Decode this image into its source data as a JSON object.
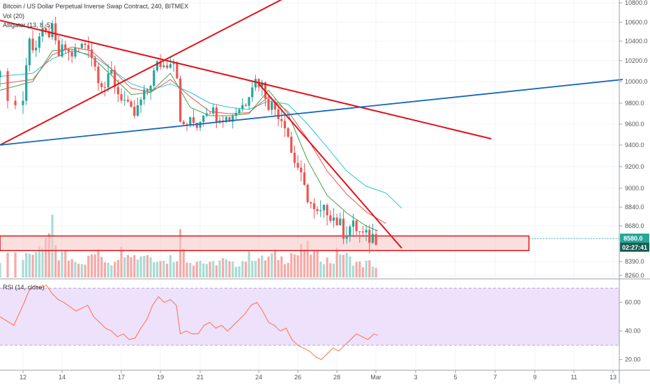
{
  "header": {
    "title": "Bitcoin / US Dollar Perpetual Inverse Swap Contract, 240, BITMEX",
    "volume_label": "Vol (20)",
    "alligator_label": "Alligator (13, 8, 5)"
  },
  "rsi_panel": {
    "label": "RSI (14, close)",
    "ticks": [
      {
        "value": 60,
        "label": "60.00"
      },
      {
        "value": 40,
        "label": "40.00"
      },
      {
        "value": 20,
        "label": "20.00"
      }
    ],
    "band": [
      30,
      70
    ],
    "ylim": [
      13,
      75
    ]
  },
  "price_tag": {
    "value": 8580,
    "label": "8580.0",
    "countdown": "02:27:41"
  },
  "colors": {
    "up": "#26a69a",
    "down": "#ef5350",
    "trendline": "#e0121a",
    "support_line": "#1565c0",
    "alligator_jaw": "#26c6da",
    "alligator_teeth": "#ef5350",
    "alligator_lips": "#43a047",
    "rsi_line": "#ff7043",
    "rsi_band": "#ede1fc",
    "zone_fill": "#f7c9c9",
    "tag_bg": "#26a69a",
    "tag_dark": "#1c5d55"
  },
  "chart_data": {
    "type": "candlestick",
    "title": "Bitcoin / US Dollar Perpetual Inverse Swap Contract, 240, BITMEX",
    "price_axis": {
      "ylim": [
        8240,
        10900
      ],
      "ticks": [
        {
          "value": 10800,
          "label": "10800.0"
        },
        {
          "value": 10600,
          "label": "10600.0"
        },
        {
          "value": 10400,
          "label": "10400.0"
        },
        {
          "value": 10200,
          "label": "10200.0"
        },
        {
          "value": 10000,
          "label": "10000.0"
        },
        {
          "value": 9800,
          "label": "9800.0"
        },
        {
          "value": 9600,
          "label": "9600.0"
        },
        {
          "value": 9400,
          "label": "9400.0"
        },
        {
          "value": 9200,
          "label": "9200.0"
        },
        {
          "value": 9000,
          "label": "9000.0"
        },
        {
          "value": 8840,
          "label": "8840.0"
        },
        {
          "value": 8680,
          "label": "8680.0"
        },
        {
          "value": 8390,
          "label": "8390.0"
        },
        {
          "value": 8260,
          "label": "8260.0"
        }
      ]
    },
    "time_axis": {
      "xlim": [
        11.5,
        13.5
      ],
      "unit": "day",
      "ticks": [
        {
          "day": 12,
          "label": "12"
        },
        {
          "day": 14,
          "label": "14"
        },
        {
          "day": 17,
          "label": "17"
        },
        {
          "day": 19,
          "label": "19"
        },
        {
          "day": 21,
          "label": "21"
        },
        {
          "day": 24,
          "label": "24"
        },
        {
          "day": 26,
          "label": "26"
        },
        {
          "day": 28,
          "label": "28"
        },
        {
          "day": 30,
          "label": "Mar"
        },
        {
          "day": 32,
          "label": "3"
        },
        {
          "day": 34,
          "label": "5"
        },
        {
          "day": 36,
          "label": "7"
        },
        {
          "day": 38,
          "label": "9"
        },
        {
          "day": 40,
          "label": "11"
        },
        {
          "day": 42,
          "label": "13"
        }
      ]
    },
    "close_path": [
      [
        11.5,
        10040
      ],
      [
        11.8,
        9760
      ],
      [
        12.0,
        9840
      ],
      [
        12.3,
        10420
      ],
      [
        12.6,
        10320
      ],
      [
        12.9,
        10480
      ],
      [
        13.2,
        10460
      ],
      [
        13.5,
        10520
      ],
      [
        13.8,
        10240
      ],
      [
        14.1,
        10340
      ],
      [
        14.4,
        10250
      ],
      [
        14.7,
        10300
      ],
      [
        15.0,
        10350
      ],
      [
        15.3,
        10390
      ],
      [
        15.6,
        10180
      ],
      [
        15.9,
        10020
      ],
      [
        16.2,
        9950
      ],
      [
        16.5,
        10080
      ],
      [
        16.8,
        9900
      ],
      [
        17.1,
        9850
      ],
      [
        17.4,
        9720
      ],
      [
        17.7,
        9680
      ],
      [
        18.0,
        9820
      ],
      [
        18.3,
        9900
      ],
      [
        18.6,
        10050
      ],
      [
        18.9,
        10180
      ],
      [
        19.2,
        10150
      ],
      [
        19.5,
        10220
      ],
      [
        19.8,
        10190
      ],
      [
        20.0,
        9580
      ],
      [
        20.3,
        9600
      ],
      [
        20.6,
        9620
      ],
      [
        20.9,
        9600
      ],
      [
        21.2,
        9740
      ],
      [
        21.5,
        9760
      ],
      [
        21.8,
        9680
      ],
      [
        22.1,
        9700
      ],
      [
        22.4,
        9640
      ],
      [
        22.7,
        9700
      ],
      [
        23.0,
        9760
      ],
      [
        23.3,
        9800
      ],
      [
        23.6,
        9980
      ],
      [
        23.9,
        10020
      ],
      [
        24.2,
        9960
      ],
      [
        24.5,
        9800
      ],
      [
        24.8,
        9760
      ],
      [
        25.1,
        9680
      ],
      [
        25.4,
        9600
      ],
      [
        25.7,
        9300
      ],
      [
        26.0,
        9200
      ],
      [
        26.3,
        9000
      ],
      [
        26.6,
        8900
      ],
      [
        26.9,
        8760
      ],
      [
        27.2,
        8780
      ],
      [
        27.5,
        8820
      ],
      [
        27.8,
        8760
      ],
      [
        28.1,
        8700
      ],
      [
        28.4,
        8620
      ],
      [
        28.7,
        8680
      ],
      [
        29.0,
        8660
      ],
      [
        29.3,
        8600
      ],
      [
        29.6,
        8580
      ],
      [
        29.9,
        8600
      ],
      [
        30.1,
        8580
      ]
    ],
    "volume_path": [
      [
        11.5,
        0.3
      ],
      [
        11.8,
        0.45
      ],
      [
        12.0,
        0.4
      ],
      [
        12.3,
        0.6
      ],
      [
        12.6,
        0.35
      ],
      [
        12.9,
        0.55
      ],
      [
        13.2,
        0.7
      ],
      [
        13.5,
        1.0
      ],
      [
        13.8,
        0.4
      ],
      [
        14.1,
        0.5
      ],
      [
        14.4,
        0.35
      ],
      [
        14.7,
        0.4
      ],
      [
        15.0,
        0.3
      ],
      [
        15.3,
        0.35
      ],
      [
        15.6,
        0.5
      ],
      [
        15.9,
        0.45
      ],
      [
        16.2,
        0.35
      ],
      [
        16.5,
        0.3
      ],
      [
        16.8,
        0.45
      ],
      [
        17.1,
        0.55
      ],
      [
        17.4,
        0.6
      ],
      [
        17.7,
        0.4
      ],
      [
        18.0,
        0.45
      ],
      [
        18.3,
        0.5
      ],
      [
        18.6,
        0.35
      ],
      [
        18.9,
        0.45
      ],
      [
        19.2,
        0.3
      ],
      [
        19.5,
        0.4
      ],
      [
        19.8,
        0.35
      ],
      [
        20.0,
        0.85
      ],
      [
        20.3,
        0.4
      ],
      [
        20.6,
        0.3
      ],
      [
        20.9,
        0.35
      ],
      [
        21.2,
        0.3
      ],
      [
        21.5,
        0.25
      ],
      [
        21.8,
        0.3
      ],
      [
        22.1,
        0.35
      ],
      [
        22.4,
        0.3
      ],
      [
        22.7,
        0.25
      ],
      [
        23.0,
        0.3
      ],
      [
        23.3,
        0.35
      ],
      [
        23.6,
        0.45
      ],
      [
        23.9,
        0.4
      ],
      [
        24.2,
        0.35
      ],
      [
        24.5,
        0.4
      ],
      [
        24.8,
        0.45
      ],
      [
        25.1,
        0.4
      ],
      [
        25.4,
        0.35
      ],
      [
        25.7,
        0.5
      ],
      [
        26.0,
        0.45
      ],
      [
        26.3,
        0.6
      ],
      [
        26.6,
        0.55
      ],
      [
        26.9,
        0.45
      ],
      [
        27.2,
        0.4
      ],
      [
        27.5,
        0.35
      ],
      [
        27.8,
        0.3
      ],
      [
        28.1,
        0.55
      ],
      [
        28.4,
        0.45
      ],
      [
        28.7,
        0.35
      ],
      [
        29.0,
        0.3
      ],
      [
        29.3,
        0.25
      ],
      [
        29.6,
        0.3
      ],
      [
        29.9,
        0.25
      ],
      [
        30.1,
        0.15
      ]
    ],
    "alligator": {
      "jaw": [
        [
          11.5,
          10050
        ],
        [
          12.5,
          10080
        ],
        [
          13.5,
          10220
        ],
        [
          14.5,
          10300
        ],
        [
          15.5,
          10260
        ],
        [
          16.5,
          10120
        ],
        [
          17.5,
          9980
        ],
        [
          18.5,
          9920
        ],
        [
          19.5,
          9980
        ],
        [
          20.5,
          9900
        ],
        [
          21.5,
          9800
        ],
        [
          22.5,
          9760
        ],
        [
          23.5,
          9740
        ],
        [
          24.5,
          9820
        ],
        [
          25.5,
          9790
        ],
        [
          26.5,
          9600
        ],
        [
          27.5,
          9380
        ],
        [
          28.5,
          9160
        ],
        [
          29.5,
          9020
        ],
        [
          30.5,
          8960
        ],
        [
          31.3,
          8830
        ]
      ],
      "teeth": [
        [
          11.5,
          9980
        ],
        [
          12.5,
          10020
        ],
        [
          13.5,
          10260
        ],
        [
          14.5,
          10340
        ],
        [
          15.5,
          10300
        ],
        [
          16.5,
          10120
        ],
        [
          17.5,
          9940
        ],
        [
          18.5,
          9900
        ],
        [
          19.5,
          10020
        ],
        [
          20.5,
          9860
        ],
        [
          21.5,
          9720
        ],
        [
          22.5,
          9700
        ],
        [
          23.5,
          9710
        ],
        [
          24.5,
          9860
        ],
        [
          25.5,
          9720
        ],
        [
          26.5,
          9460
        ],
        [
          27.5,
          9160
        ],
        [
          28.5,
          8950
        ],
        [
          29.5,
          8800
        ],
        [
          30.5,
          8700
        ]
      ],
      "lips": [
        [
          11.5,
          9920
        ],
        [
          12.5,
          10000
        ],
        [
          13.5,
          10300
        ],
        [
          14.5,
          10320
        ],
        [
          15.5,
          10240
        ],
        [
          16.5,
          10060
        ],
        [
          17.5,
          9880
        ],
        [
          18.5,
          9900
        ],
        [
          19.5,
          10080
        ],
        [
          20.5,
          9760
        ],
        [
          21.5,
          9680
        ],
        [
          22.5,
          9680
        ],
        [
          23.5,
          9700
        ],
        [
          24.5,
          9920
        ],
        [
          25.5,
          9700
        ],
        [
          26.5,
          9260
        ],
        [
          27.5,
          8940
        ],
        [
          28.5,
          8790
        ],
        [
          29.5,
          8680
        ],
        [
          30.1,
          8640
        ]
      ]
    },
    "rsi_path": [
      [
        11.5,
        50
      ],
      [
        11.8,
        44
      ],
      [
        12.0,
        58
      ],
      [
        12.3,
        68
      ],
      [
        12.6,
        72
      ],
      [
        12.9,
        70
      ],
      [
        13.2,
        72
      ],
      [
        13.5,
        66
      ],
      [
        13.8,
        62
      ],
      [
        14.1,
        60
      ],
      [
        14.4,
        57
      ],
      [
        14.7,
        54
      ],
      [
        15.0,
        56
      ],
      [
        15.3,
        58
      ],
      [
        15.6,
        50
      ],
      [
        15.9,
        46
      ],
      [
        16.2,
        42
      ],
      [
        16.5,
        40
      ],
      [
        16.8,
        36
      ],
      [
        17.1,
        38
      ],
      [
        17.4,
        34
      ],
      [
        17.7,
        35
      ],
      [
        18.0,
        42
      ],
      [
        18.3,
        48
      ],
      [
        18.6,
        58
      ],
      [
        18.9,
        64
      ],
      [
        19.2,
        60
      ],
      [
        19.5,
        62
      ],
      [
        19.8,
        58
      ],
      [
        20.0,
        38
      ],
      [
        20.3,
        40
      ],
      [
        20.6,
        38
      ],
      [
        20.9,
        38
      ],
      [
        21.2,
        44
      ],
      [
        21.5,
        46
      ],
      [
        21.8,
        42
      ],
      [
        22.1,
        44
      ],
      [
        22.4,
        40
      ],
      [
        22.7,
        44
      ],
      [
        23.0,
        48
      ],
      [
        23.3,
        52
      ],
      [
        23.6,
        58
      ],
      [
        23.9,
        60
      ],
      [
        24.2,
        54
      ],
      [
        24.5,
        46
      ],
      [
        24.8,
        44
      ],
      [
        25.1,
        40
      ],
      [
        25.4,
        42
      ],
      [
        25.7,
        34
      ],
      [
        26.0,
        30
      ],
      [
        26.3,
        28
      ],
      [
        26.6,
        26
      ],
      [
        26.9,
        22
      ],
      [
        27.2,
        20
      ],
      [
        27.5,
        24
      ],
      [
        27.8,
        28
      ],
      [
        28.1,
        26
      ],
      [
        28.4,
        30
      ],
      [
        28.7,
        34
      ],
      [
        29.0,
        38
      ],
      [
        29.3,
        36
      ],
      [
        29.6,
        34
      ],
      [
        29.9,
        38
      ],
      [
        30.1,
        37
      ]
    ],
    "drawings": {
      "trendlines": [
        {
          "name": "upper-descending-trendline",
          "from": [
            11.5,
            10620
          ],
          "to": [
            35.8,
            9460
          ]
        },
        {
          "name": "ascending-trendline",
          "from": [
            11.5,
            9400
          ],
          "to": [
            26.3,
            10950
          ]
        },
        {
          "name": "steep-descending-trendline",
          "from": [
            24.0,
            9980
          ],
          "to": [
            31.3,
            8500
          ]
        }
      ],
      "support_line": {
        "from": [
          11.5,
          9400
        ],
        "to": [
          42.5,
          10020
        ]
      },
      "support_zone": {
        "from_day": 11.5,
        "to_day": 37.7,
        "price_low": 8480,
        "price_high": 8600
      },
      "last_price_line": {
        "price": 8580
      }
    }
  }
}
